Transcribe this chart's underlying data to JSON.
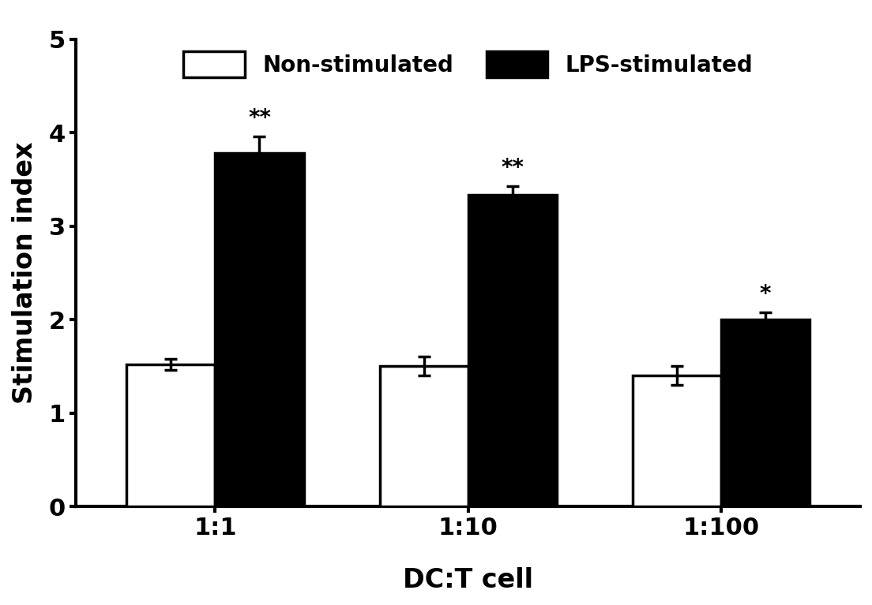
{
  "categories": [
    "1:1",
    "1:10",
    "1:100"
  ],
  "non_stimulated_values": [
    1.52,
    1.5,
    1.4
  ],
  "non_stimulated_errors": [
    0.06,
    0.1,
    0.1
  ],
  "lps_stimulated_values": [
    3.78,
    3.33,
    2.0
  ],
  "lps_stimulated_errors": [
    0.18,
    0.1,
    0.08
  ],
  "annotations_lps": [
    "**",
    "**",
    "*"
  ],
  "bar_width": 0.35,
  "ylim": [
    0,
    5
  ],
  "yticks": [
    0,
    1,
    2,
    3,
    4,
    5
  ],
  "ylabel": "Stimulation index",
  "xlabel": "DC:T cell",
  "legend_labels": [
    "Non-stimulated",
    "LPS-stimulated"
  ],
  "non_stim_color": "#ffffff",
  "lps_stim_color": "#000000",
  "edge_color": "#000000",
  "annotation_fontsize": 20,
  "label_fontsize": 24,
  "tick_fontsize": 22,
  "legend_fontsize": 20,
  "spine_linewidth": 3.0,
  "bar_linewidth": 2.5,
  "cap_size": 6,
  "cap_thick": 2.5,
  "error_linewidth": 2.5
}
